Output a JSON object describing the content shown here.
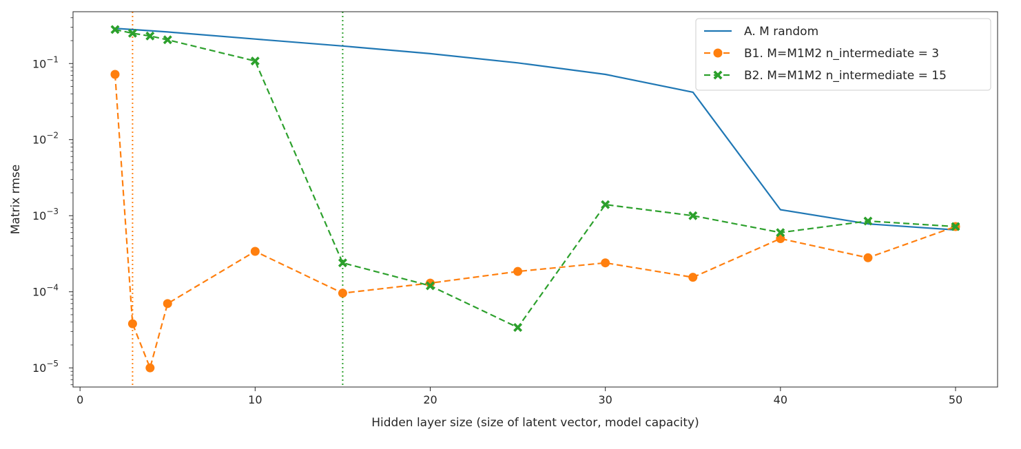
{
  "chart_data": {
    "type": "line",
    "title": "",
    "xlabel": "Hidden layer size (size of latent vector, model capacity)",
    "ylabel": "Matrix rmse",
    "xlim": [
      -0.4,
      52.4
    ],
    "ylim": [
      5.6e-06,
      0.48
    ],
    "yscale": "log",
    "grid": false,
    "legend_position": "top-right",
    "x_ticks": [
      0,
      10,
      20,
      30,
      40,
      50
    ],
    "y_ticks": [
      {
        "value": 1e-05,
        "base": "10",
        "exp": "−5"
      },
      {
        "value": 0.0001,
        "base": "10",
        "exp": "−4"
      },
      {
        "value": 0.001,
        "base": "10",
        "exp": "−3"
      },
      {
        "value": 0.01,
        "base": "10",
        "exp": "−2"
      },
      {
        "value": 0.1,
        "base": "10",
        "exp": "−1"
      }
    ],
    "series": [
      {
        "name": "A. M random",
        "color": "#1f77b4",
        "style": "solid",
        "marker": "none",
        "x": [
          2,
          3,
          4,
          5,
          10,
          15,
          20,
          25,
          30,
          35,
          40,
          45,
          50
        ],
        "y": [
          0.29,
          0.28,
          0.27,
          0.26,
          0.21,
          0.17,
          0.135,
          0.102,
          0.072,
          0.042,
          0.0012,
          0.00078,
          0.00065
        ]
      },
      {
        "name": "B1. M=M1M2 n_intermediate = 3",
        "color": "#ff7f0e",
        "style": "dashed",
        "marker": "circle",
        "x": [
          2,
          3,
          4,
          5,
          10,
          15,
          20,
          25,
          30,
          35,
          40,
          45,
          50
        ],
        "y": [
          0.072,
          3.8e-05,
          1e-05,
          7e-05,
          0.00034,
          9.6e-05,
          0.00013,
          0.000185,
          0.00024,
          0.000155,
          0.0005,
          0.00028,
          0.00072
        ]
      },
      {
        "name": "B2. M=M1M2 n_intermediate = 15",
        "color": "#2ca02c",
        "style": "dashed",
        "marker": "x",
        "x": [
          2,
          3,
          4,
          5,
          10,
          15,
          20,
          25,
          30,
          35,
          40,
          45,
          50
        ],
        "y": [
          0.28,
          0.25,
          0.23,
          0.205,
          0.108,
          0.00024,
          0.00012,
          3.4e-05,
          0.0014,
          0.001,
          0.0006,
          0.00085,
          0.00072
        ]
      }
    ],
    "vlines": [
      {
        "x": 3,
        "color": "#ff7f0e",
        "style": "dotted"
      },
      {
        "x": 15,
        "color": "#2ca02c",
        "style": "dotted"
      }
    ]
  }
}
